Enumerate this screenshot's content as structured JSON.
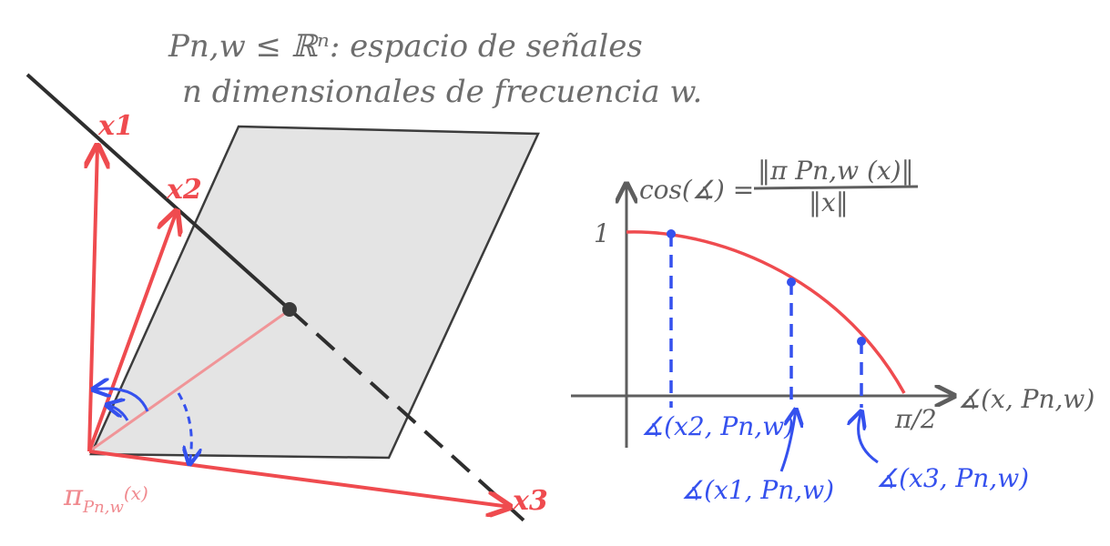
{
  "title": {
    "line1": "Pn,w ≤ ℝⁿ: espacio de señales",
    "line2": "n dimensionales de frecuencia w."
  },
  "left_diagram": {
    "vectors": [
      {
        "label": "x1"
      },
      {
        "label": "x2"
      },
      {
        "label": "x3"
      }
    ],
    "projection_label": {
      "main": "π",
      "subscript": "Pn,w",
      "arg": "(x)"
    }
  },
  "right_chart": {
    "y_label": "cos(∡) =",
    "fraction_numerator": "‖π Pn,w (x)‖",
    "fraction_denominator": "‖x‖",
    "y_tick": "1",
    "x_tick": "π/2",
    "x_label": "∡(x, Pn,w)",
    "points": [
      {
        "label": "∡(x2, Pn,w)"
      },
      {
        "label": "∡(x1, Pn,w)"
      },
      {
        "label": "∡(x3, Pn,w)"
      }
    ]
  },
  "colors": {
    "vector_red": "#ef4b4f",
    "projection_pink": "#f09598",
    "angle_blue": "#3551ee",
    "plane_fill": "#e4e4e4",
    "ink_gray": "#5e5e5e"
  }
}
